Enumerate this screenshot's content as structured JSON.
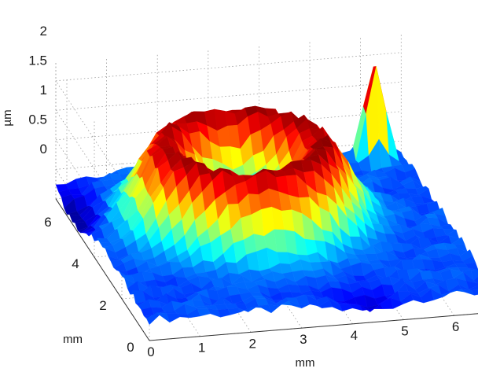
{
  "chart_data": {
    "type": "surface",
    "title": "",
    "xlabel": "mm",
    "ylabel": "mm",
    "zlabel": "µm",
    "xlim": [
      0,
      6.8
    ],
    "ylim": [
      0,
      6.8
    ],
    "zlim": [
      0,
      2.3
    ],
    "x_ticks": [
      "0",
      "1",
      "2",
      "3",
      "4",
      "5",
      "6"
    ],
    "y_ticks": [
      "0",
      "2",
      "4",
      "6"
    ],
    "z_ticks": [
      "0",
      "0.5",
      "1",
      "1.5",
      "2"
    ],
    "grid": true,
    "colormap": "jet",
    "surface": {
      "shape": "ring-shaped raised region with a central depression",
      "ring_center_mm": [
        3.0,
        4.2
      ],
      "ring_radius_mm": 1.5,
      "ring_peak_height_um": 1.7,
      "center_height_um": 0.6,
      "background_height_um": 0.35,
      "spike": {
        "x_mm": 6.2,
        "y_mm": 6.5,
        "height_um": 2.2
      }
    }
  }
}
